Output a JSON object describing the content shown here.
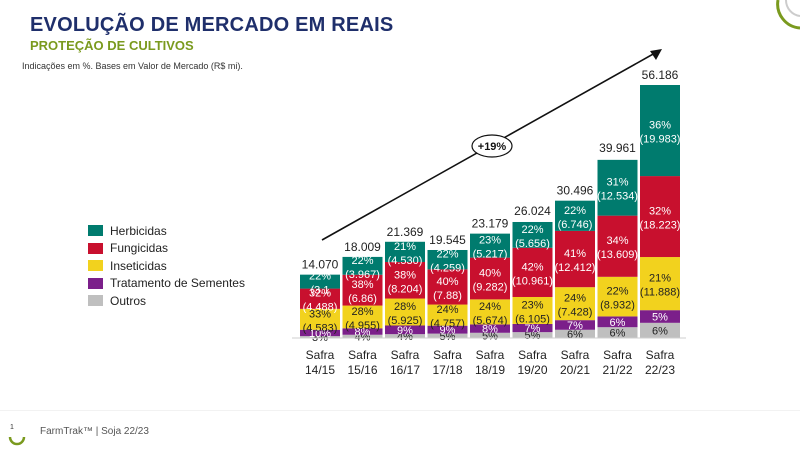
{
  "header": {
    "title": "EVOLUÇÃO  DE MERCADO  EM REAIS",
    "subtitle": "PROTEÇÃO DE CULTIVOS",
    "note": "Indicações  em %. Bases  em Valor de Mercado (R$ mi)."
  },
  "footer": {
    "page": "1",
    "text": "FarmTrak™ | Soja 22/23"
  },
  "colors": {
    "title": "#1f2f6b",
    "accent": "#7a9a1e",
    "Herbicidas": "#007b6e",
    "Fungicidas": "#c8102e",
    "Inseticidas": "#f2d21e",
    "Tratamento de Sementes": "#7b1f8a",
    "Outros": "#bfbfbf"
  },
  "chart_data": {
    "type": "bar",
    "stacked": true,
    "categories": [
      [
        "Safra",
        "14/15"
      ],
      [
        "Safra",
        "15/16"
      ],
      [
        "Safra",
        "16/17"
      ],
      [
        "Safra",
        "17/18"
      ],
      [
        "Safra",
        "18/19"
      ],
      [
        "Safra",
        "19/20"
      ],
      [
        "Safra",
        "20/21"
      ],
      [
        "Safra",
        "21/22"
      ],
      [
        "Safra",
        "22/23"
      ]
    ],
    "totals": [
      "14.070",
      "18.009",
      "21.369",
      "19.545",
      "23.179",
      "26.024",
      "30.496",
      "39.961",
      "56.186"
    ],
    "total_values": [
      14070,
      18009,
      21369,
      19545,
      23179,
      26024,
      30496,
      39961,
      56186
    ],
    "annotation": "+19%",
    "legend_position": "left",
    "series": [
      {
        "name": "Outros",
        "pct": [
          3,
          4,
          4,
          5,
          5,
          5,
          6,
          6,
          6
        ],
        "labels": [
          "3%",
          "4%",
          "4%",
          "5%",
          "5%",
          "5%",
          "6%",
          "6%",
          "6%"
        ],
        "abs": [
          "",
          "",
          "",
          "",
          "",
          "",
          "",
          "",
          ""
        ]
      },
      {
        "name": "Tratamento de Sementes",
        "pct": [
          10,
          8,
          9,
          9,
          8,
          7,
          7,
          6,
          5
        ],
        "labels": [
          "10%",
          "8%",
          "9%",
          "9%",
          "8%",
          "7%",
          "7%",
          "6%",
          "5%"
        ],
        "abs": [
          "",
          "",
          "",
          "",
          "",
          "",
          "",
          "",
          ""
        ]
      },
      {
        "name": "Inseticidas",
        "pct": [
          33,
          28,
          28,
          24,
          24,
          23,
          24,
          22,
          21
        ],
        "labels": [
          "33%",
          "28%",
          "28%",
          "24%",
          "24%",
          "23%",
          "24%",
          "22%",
          "21%"
        ],
        "abs": [
          "(4.583)",
          "(4.955)",
          "(5.925)",
          "(4.757)",
          "(5.674)",
          "(6.105)",
          "(7.428)",
          "(8.932)",
          "(11.888)"
        ]
      },
      {
        "name": "Fungicidas",
        "pct": [
          32,
          38,
          38,
          40,
          40,
          42,
          41,
          34,
          32
        ],
        "labels": [
          "32%",
          "38%",
          "38%",
          "40%",
          "40%",
          "42%",
          "41%",
          "34%",
          "32%"
        ],
        "abs": [
          "(4.488)",
          "(6.86)",
          "(8.204)",
          "(7.88)",
          "(9.282)",
          "(10.961)",
          "(12.412)",
          "(13.609)",
          "(18.223)"
        ]
      },
      {
        "name": "Herbicidas",
        "pct": [
          22,
          22,
          21,
          22,
          23,
          22,
          22,
          31,
          36
        ],
        "labels": [
          "22%",
          "22%",
          "21%",
          "22%",
          "23%",
          "22%",
          "22%",
          "31%",
          "36%"
        ],
        "abs": [
          "(3.1",
          "(3.967)",
          "(4.530)",
          "(4.259)",
          "(5.217)",
          "(5.656)",
          "(6.746)",
          "(12.534)",
          "(19.983)"
        ]
      }
    ],
    "legend": [
      "Herbicidas",
      "Fungicidas",
      "Inseticidas",
      "Tratamento de Sementes",
      "Outros"
    ]
  }
}
